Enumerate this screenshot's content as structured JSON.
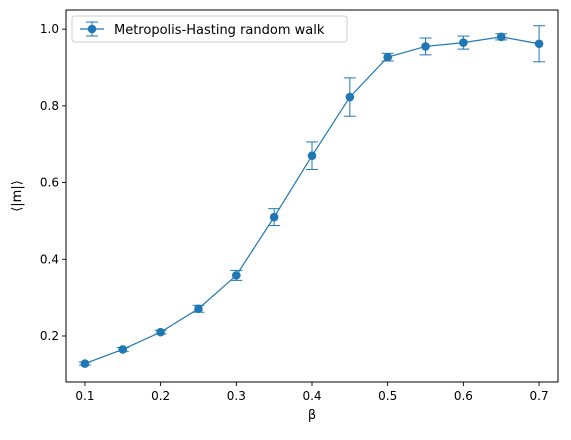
{
  "chart_data": {
    "type": "line",
    "xlabel": "β",
    "ylabel": "⟨|m|⟩",
    "xlim": [
      0.075,
      0.725
    ],
    "ylim": [
      0.08,
      1.05
    ],
    "xticks": [
      0.1,
      0.2,
      0.3,
      0.4,
      0.5,
      0.6,
      0.7
    ],
    "yticks": [
      0.2,
      0.4,
      0.6,
      0.8,
      1.0
    ],
    "xtick_labels": [
      "0.1",
      "0.2",
      "0.3",
      "0.4",
      "0.5",
      "0.6",
      "0.7"
    ],
    "ytick_labels": [
      "0.2",
      "0.4",
      "0.6",
      "0.8",
      "1.0"
    ],
    "grid": false,
    "legend_position": "upper-left",
    "series": [
      {
        "name": "Metropolis-Hasting random walk",
        "color": "#1f77b4",
        "marker": "circle",
        "x": [
          0.1,
          0.15,
          0.2,
          0.25,
          0.3,
          0.35,
          0.4,
          0.45,
          0.5,
          0.55,
          0.6,
          0.65,
          0.7
        ],
        "y": [
          0.128,
          0.165,
          0.21,
          0.271,
          0.358,
          0.51,
          0.67,
          0.823,
          0.927,
          0.955,
          0.965,
          0.98,
          0.962
        ],
        "yerr": [
          0.004,
          0.005,
          0.005,
          0.009,
          0.013,
          0.022,
          0.036,
          0.05,
          0.01,
          0.022,
          0.017,
          0.008,
          0.047
        ]
      }
    ]
  }
}
